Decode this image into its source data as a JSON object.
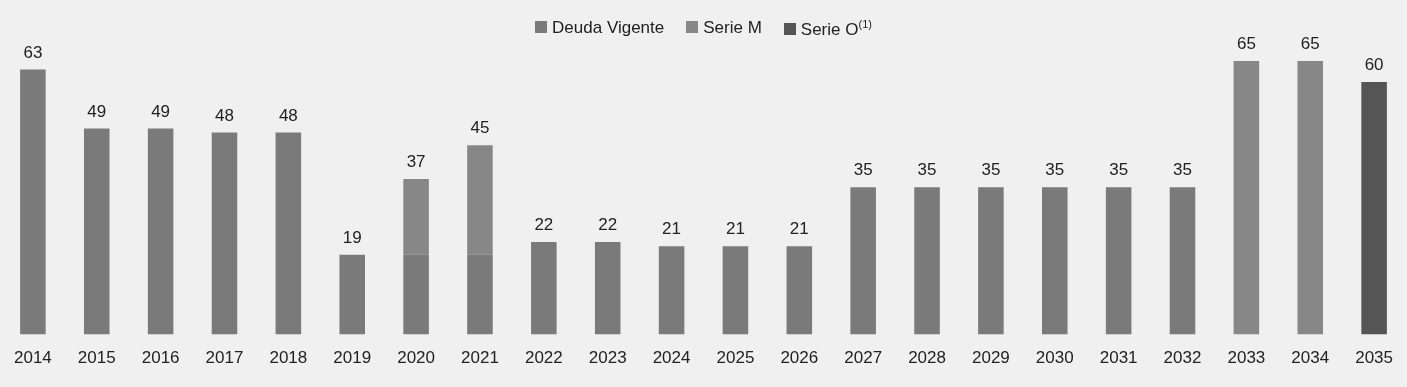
{
  "chart_data": {
    "type": "bar",
    "stacked": true,
    "legend": "top",
    "grid": false,
    "categories": [
      "2014",
      "2015",
      "2016",
      "2017",
      "2018",
      "2019",
      "2020",
      "2021",
      "2022",
      "2023",
      "2024",
      "2025",
      "2026",
      "2027",
      "2028",
      "2029",
      "2030",
      "2031",
      "2032",
      "2033",
      "2034",
      "2035"
    ],
    "series": [
      {
        "name": "Deuda Vigente",
        "color": "#7a7a7a",
        "values": [
          63,
          49,
          49,
          48,
          48,
          19,
          19,
          19,
          22,
          22,
          21,
          21,
          21,
          35,
          35,
          35,
          35,
          35,
          35,
          null,
          null,
          null
        ],
        "value_labels": [
          "63",
          "49",
          "49",
          "48",
          "48",
          "19",
          null,
          null,
          "22",
          "22",
          "21",
          "21",
          "21",
          "35",
          "35",
          "35",
          "35",
          "35",
          "35",
          null,
          null,
          null
        ]
      },
      {
        "name": "Serie M",
        "color": "#878787",
        "values": [
          null,
          null,
          null,
          null,
          null,
          null,
          18,
          26,
          null,
          null,
          null,
          null,
          null,
          null,
          null,
          null,
          null,
          null,
          null,
          65,
          65,
          null
        ],
        "value_labels": [
          null,
          null,
          null,
          null,
          null,
          null,
          null,
          null,
          null,
          null,
          null,
          null,
          null,
          null,
          null,
          null,
          null,
          null,
          null,
          "65",
          "65",
          null
        ]
      },
      {
        "name": "Serie O$^{(1)}$",
        "color": "#555555",
        "values": [
          null,
          null,
          null,
          null,
          null,
          null,
          null,
          null,
          null,
          null,
          null,
          null,
          null,
          null,
          null,
          null,
          null,
          null,
          null,
          null,
          null,
          60
        ],
        "value_labels": [
          null,
          null,
          null,
          null,
          null,
          null,
          null,
          null,
          null,
          null,
          null,
          null,
          null,
          null,
          null,
          null,
          null,
          null,
          null,
          null,
          null,
          "60"
        ]
      }
    ],
    "totals": [
      null,
      null,
      null,
      null,
      null,
      null,
      "37",
      "45",
      null,
      null,
      null,
      null,
      null,
      null,
      null,
      null,
      null,
      null,
      null,
      null,
      null,
      null
    ],
    "tick_labels": "x"
  }
}
